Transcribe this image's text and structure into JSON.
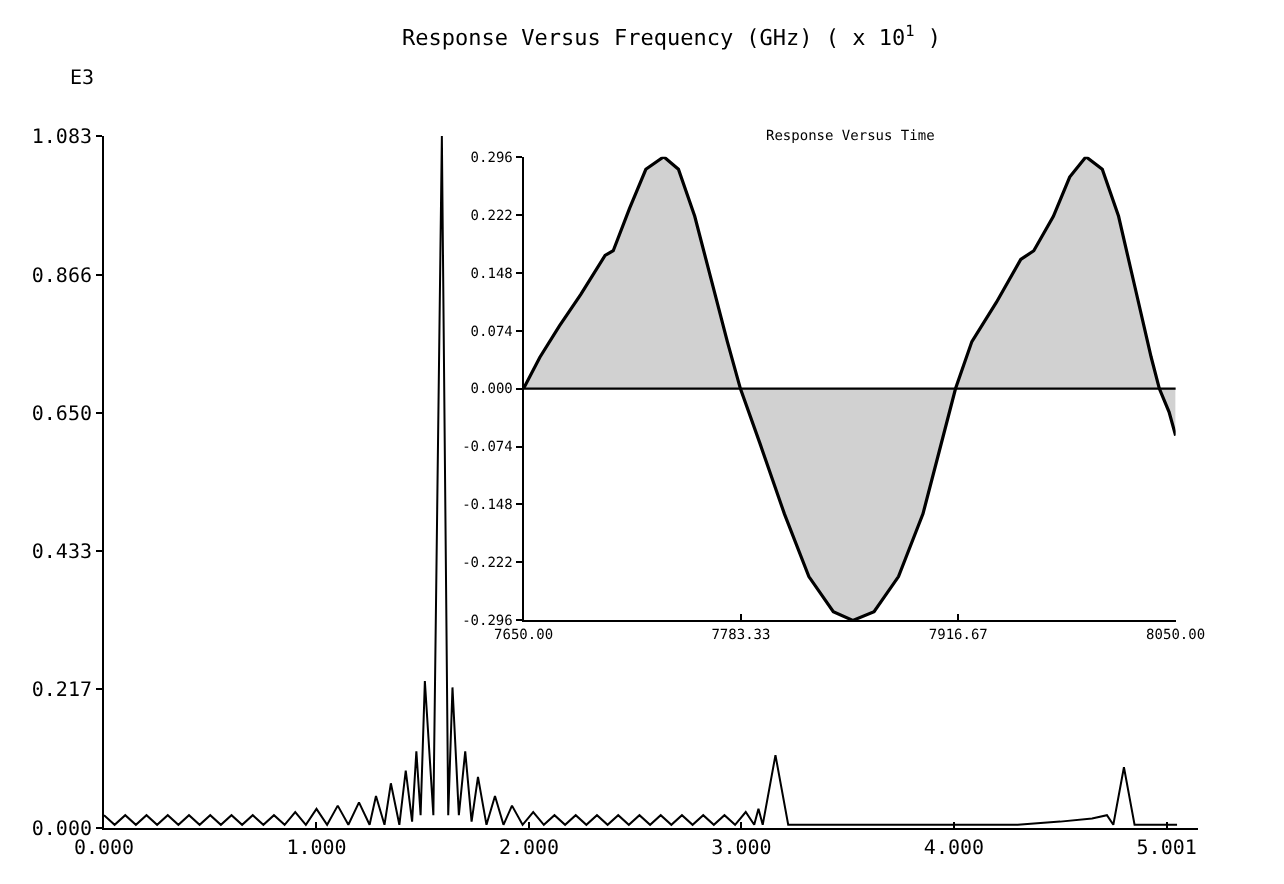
{
  "chart_data": [
    {
      "type": "line",
      "title": "Response Versus Frequency (GHz) ( x 10$^{1}$ )",
      "annotations": [
        "E3"
      ],
      "xlim": [
        0,
        5.15
      ],
      "xticks": [
        {
          "value": 0,
          "label": "0.000"
        },
        {
          "value": 1,
          "label": "1.000"
        },
        {
          "value": 2,
          "label": "2.000"
        },
        {
          "value": 3,
          "label": "3.000"
        },
        {
          "value": 4,
          "label": "4.000"
        },
        {
          "value": 5.001,
          "label": "5.001"
        }
      ],
      "ylim": [
        0,
        1.083
      ],
      "yticks": [
        {
          "value": 0,
          "label": "0.000"
        },
        {
          "value": 0.217,
          "label": "0.217"
        },
        {
          "value": 0.433,
          "label": "0.433"
        },
        {
          "value": 0.65,
          "label": "0.650"
        },
        {
          "value": 0.866,
          "label": "0.866"
        },
        {
          "value": 1.083,
          "label": "1.083"
        }
      ],
      "series": [
        {
          "color": "#000000",
          "x": [
            0,
            0.05,
            0.1,
            0.15,
            0.2,
            0.25,
            0.3,
            0.35,
            0.4,
            0.45,
            0.5,
            0.55,
            0.6,
            0.65,
            0.7,
            0.75,
            0.8,
            0.85,
            0.9,
            0.95,
            1.0,
            1.05,
            1.1,
            1.15,
            1.2,
            1.25,
            1.28,
            1.32,
            1.35,
            1.39,
            1.42,
            1.45,
            1.47,
            1.49,
            1.51,
            1.55,
            1.59,
            1.62,
            1.64,
            1.67,
            1.7,
            1.73,
            1.76,
            1.8,
            1.84,
            1.88,
            1.92,
            1.97,
            2.02,
            2.07,
            2.12,
            2.17,
            2.22,
            2.27,
            2.32,
            2.37,
            2.42,
            2.47,
            2.52,
            2.57,
            2.62,
            2.67,
            2.72,
            2.77,
            2.82,
            2.87,
            2.92,
            2.97,
            3.02,
            3.06,
            3.08,
            3.1,
            3.16,
            3.22,
            3.3,
            3.5,
            3.7,
            3.9,
            4.1,
            4.3,
            4.5,
            4.65,
            4.72,
            4.75,
            4.8,
            4.85,
            4.95,
            5.05
          ],
          "values": [
            0.02,
            0.005,
            0.02,
            0.005,
            0.02,
            0.005,
            0.02,
            0.005,
            0.02,
            0.005,
            0.02,
            0.005,
            0.02,
            0.005,
            0.02,
            0.005,
            0.02,
            0.005,
            0.025,
            0.005,
            0.03,
            0.005,
            0.035,
            0.005,
            0.04,
            0.005,
            0.05,
            0.005,
            0.07,
            0.005,
            0.09,
            0.01,
            0.12,
            0.02,
            0.23,
            0.02,
            1.083,
            0.02,
            0.22,
            0.02,
            0.12,
            0.01,
            0.08,
            0.005,
            0.05,
            0.005,
            0.035,
            0.005,
            0.025,
            0.005,
            0.02,
            0.005,
            0.02,
            0.005,
            0.02,
            0.005,
            0.02,
            0.005,
            0.02,
            0.005,
            0.02,
            0.005,
            0.02,
            0.005,
            0.02,
            0.005,
            0.02,
            0.005,
            0.025,
            0.005,
            0.03,
            0.005,
            0.114,
            0.005,
            0.005,
            0.005,
            0.005,
            0.005,
            0.005,
            0.005,
            0.01,
            0.015,
            0.02,
            0.005,
            0.095,
            0.005,
            0.005,
            0.005
          ]
        }
      ]
    },
    {
      "type": "area",
      "title": "Response Versus Time",
      "xlim": [
        7650,
        8050
      ],
      "xticks": [
        {
          "value": 7650,
          "label": "7650.00"
        },
        {
          "value": 7783.33,
          "label": "7783.33"
        },
        {
          "value": 7916.67,
          "label": "7916.67"
        },
        {
          "value": 8050,
          "label": "8050.00"
        }
      ],
      "ylim": [
        -0.296,
        0.296
      ],
      "yticks": [
        {
          "value": -0.296,
          "label": "-0.296"
        },
        {
          "value": -0.222,
          "label": "-0.222"
        },
        {
          "value": -0.148,
          "label": "-0.148"
        },
        {
          "value": -0.074,
          "label": "-0.074"
        },
        {
          "value": 0,
          "label": "0.000"
        },
        {
          "value": 0.074,
          "label": "0.074"
        },
        {
          "value": 0.148,
          "label": "0.148"
        },
        {
          "value": 0.222,
          "label": "0.222"
        },
        {
          "value": 0.296,
          "label": "0.296"
        }
      ],
      "ref_lines": [
        {
          "axis": "y",
          "value": 0,
          "label": null,
          "color": "#000000"
        }
      ],
      "series": [
        {
          "color": "#000000",
          "x": [
            7650,
            7660,
            7672,
            7685,
            7700,
            7705,
            7715,
            7725,
            7736,
            7745,
            7755,
            7765,
            7775,
            7783,
            7795,
            7810,
            7825,
            7840,
            7852,
            7865,
            7880,
            7895,
            7905,
            7915,
            7925,
            7940,
            7955,
            7963,
            7975,
            7985,
            7995,
            8005,
            8015,
            8025,
            8035,
            8040,
            8046,
            8050
          ],
          "values": [
            0,
            0.04,
            0.08,
            0.12,
            0.17,
            0.176,
            0.23,
            0.28,
            0.296,
            0.28,
            0.22,
            0.14,
            0.06,
            0,
            -0.07,
            -0.16,
            -0.24,
            -0.285,
            -0.296,
            -0.285,
            -0.24,
            -0.16,
            -0.08,
            0,
            0.06,
            0.11,
            0.165,
            0.176,
            0.22,
            0.27,
            0.296,
            0.28,
            0.22,
            0.13,
            0.04,
            0,
            -0.03,
            -0.06
          ]
        }
      ]
    }
  ]
}
